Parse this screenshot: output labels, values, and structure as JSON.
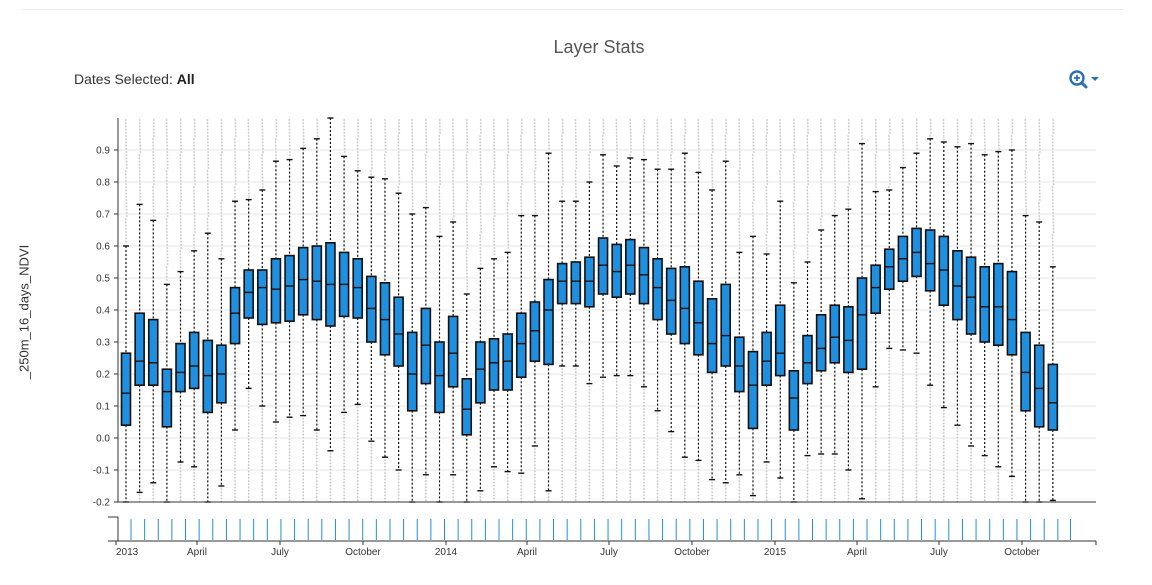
{
  "title": "Layer Stats",
  "dates_selected": {
    "label": "Dates Selected:",
    "value": "All"
  },
  "zoom": {
    "icon": "zoom-in-icon",
    "caret": "chevron-down-icon",
    "color": "#2a6fb5"
  },
  "colors": {
    "box_fill": "#1f8fdf",
    "box_stroke": "#111111",
    "outlier": "#c8c8c8",
    "grid": "#e6e6e6",
    "brush_tick": "#1f8fdf"
  },
  "chart_data": {
    "type": "box",
    "ylabel": "_250m_16_days_NDVI",
    "ylim": [
      -0.2,
      1.0
    ],
    "yticks": [
      -0.2,
      -0.1,
      0.0,
      0.1,
      0.2,
      0.3,
      0.4,
      0.5,
      0.6,
      0.7,
      0.8,
      0.9
    ],
    "x_ticks": [
      "2013",
      "April",
      "July",
      "October",
      "2014",
      "April",
      "July",
      "October",
      "2015",
      "April",
      "July",
      "October"
    ],
    "grid": true,
    "boxes": [
      {
        "min": -0.2,
        "q1": 0.04,
        "median": 0.14,
        "q3": 0.265,
        "max": 0.6
      },
      {
        "min": -0.17,
        "q1": 0.165,
        "median": 0.24,
        "q3": 0.39,
        "max": 0.73
      },
      {
        "min": -0.14,
        "q1": 0.165,
        "median": 0.235,
        "q3": 0.37,
        "max": 0.68
      },
      {
        "min": -0.2,
        "q1": 0.035,
        "median": 0.145,
        "q3": 0.215,
        "max": 0.48
      },
      {
        "min": -0.075,
        "q1": 0.145,
        "median": 0.205,
        "q3": 0.295,
        "max": 0.52
      },
      {
        "min": -0.09,
        "q1": 0.155,
        "median": 0.225,
        "q3": 0.33,
        "max": 0.585
      },
      {
        "min": -0.2,
        "q1": 0.08,
        "median": 0.195,
        "q3": 0.305,
        "max": 0.64
      },
      {
        "min": -0.15,
        "q1": 0.11,
        "median": 0.2,
        "q3": 0.29,
        "max": 0.56
      },
      {
        "min": 0.025,
        "q1": 0.295,
        "median": 0.39,
        "q3": 0.47,
        "max": 0.74
      },
      {
        "min": 0.155,
        "q1": 0.375,
        "median": 0.455,
        "q3": 0.525,
        "max": 0.745
      },
      {
        "min": 0.1,
        "q1": 0.355,
        "median": 0.47,
        "q3": 0.525,
        "max": 0.775
      },
      {
        "min": 0.05,
        "q1": 0.36,
        "median": 0.465,
        "q3": 0.56,
        "max": 0.865
      },
      {
        "min": 0.065,
        "q1": 0.365,
        "median": 0.475,
        "q3": 0.57,
        "max": 0.87
      },
      {
        "min": 0.07,
        "q1": 0.385,
        "median": 0.495,
        "q3": 0.595,
        "max": 0.905
      },
      {
        "min": 0.025,
        "q1": 0.37,
        "median": 0.49,
        "q3": 0.6,
        "max": 0.935
      },
      {
        "min": -0.04,
        "q1": 0.35,
        "median": 0.48,
        "q3": 0.61,
        "max": 1.0
      },
      {
        "min": 0.08,
        "q1": 0.38,
        "median": 0.48,
        "q3": 0.58,
        "max": 0.88
      },
      {
        "min": 0.105,
        "q1": 0.375,
        "median": 0.47,
        "q3": 0.56,
        "max": 0.835
      },
      {
        "min": -0.01,
        "q1": 0.3,
        "median": 0.405,
        "q3": 0.505,
        "max": 0.815
      },
      {
        "min": -0.06,
        "q1": 0.26,
        "median": 0.37,
        "q3": 0.485,
        "max": 0.81
      },
      {
        "min": -0.1,
        "q1": 0.225,
        "median": 0.325,
        "q3": 0.44,
        "max": 0.765
      },
      {
        "min": -0.2,
        "q1": 0.085,
        "median": 0.2,
        "q3": 0.33,
        "max": 0.7
      },
      {
        "min": -0.115,
        "q1": 0.17,
        "median": 0.29,
        "q3": 0.405,
        "max": 0.72
      },
      {
        "min": -0.2,
        "q1": 0.08,
        "median": 0.195,
        "q3": 0.3,
        "max": 0.63
      },
      {
        "min": -0.115,
        "q1": 0.16,
        "median": 0.265,
        "q3": 0.38,
        "max": 0.675
      },
      {
        "min": -0.2,
        "q1": 0.01,
        "median": 0.09,
        "q3": 0.185,
        "max": 0.45
      },
      {
        "min": -0.165,
        "q1": 0.11,
        "median": 0.215,
        "q3": 0.3,
        "max": 0.53
      },
      {
        "min": -0.09,
        "q1": 0.15,
        "median": 0.235,
        "q3": 0.31,
        "max": 0.56
      },
      {
        "min": -0.105,
        "q1": 0.15,
        "median": 0.24,
        "q3": 0.325,
        "max": 0.58
      },
      {
        "min": -0.11,
        "q1": 0.19,
        "median": 0.295,
        "q3": 0.39,
        "max": 0.695
      },
      {
        "min": -0.025,
        "q1": 0.24,
        "median": 0.335,
        "q3": 0.425,
        "max": 0.695
      },
      {
        "min": -0.165,
        "q1": 0.23,
        "median": 0.4,
        "q3": 0.495,
        "max": 0.89
      },
      {
        "min": 0.225,
        "q1": 0.42,
        "median": 0.49,
        "q3": 0.545,
        "max": 0.74
      },
      {
        "min": 0.225,
        "q1": 0.42,
        "median": 0.49,
        "q3": 0.55,
        "max": 0.74
      },
      {
        "min": 0.17,
        "q1": 0.41,
        "median": 0.49,
        "q3": 0.565,
        "max": 0.8
      },
      {
        "min": 0.19,
        "q1": 0.45,
        "median": 0.54,
        "q3": 0.625,
        "max": 0.885
      },
      {
        "min": 0.195,
        "q1": 0.44,
        "median": 0.52,
        "q3": 0.605,
        "max": 0.85
      },
      {
        "min": 0.195,
        "q1": 0.45,
        "median": 0.54,
        "q3": 0.62,
        "max": 0.875
      },
      {
        "min": 0.16,
        "q1": 0.42,
        "median": 0.51,
        "q3": 0.595,
        "max": 0.87
      },
      {
        "min": 0.085,
        "q1": 0.37,
        "median": 0.47,
        "q3": 0.56,
        "max": 0.84
      },
      {
        "min": 0.02,
        "q1": 0.325,
        "median": 0.43,
        "q3": 0.53,
        "max": 0.84
      },
      {
        "min": -0.06,
        "q1": 0.295,
        "median": 0.405,
        "q3": 0.535,
        "max": 0.89
      },
      {
        "min": -0.07,
        "q1": 0.26,
        "median": 0.36,
        "q3": 0.49,
        "max": 0.83
      },
      {
        "min": -0.13,
        "q1": 0.205,
        "median": 0.295,
        "q3": 0.435,
        "max": 0.775
      },
      {
        "min": -0.14,
        "q1": 0.225,
        "median": 0.32,
        "q3": 0.48,
        "max": 0.865
      },
      {
        "min": -0.115,
        "q1": 0.145,
        "median": 0.225,
        "q3": 0.315,
        "max": 0.58
      },
      {
        "min": -0.18,
        "q1": 0.03,
        "median": 0.165,
        "q3": 0.27,
        "max": 0.63
      },
      {
        "min": -0.075,
        "q1": 0.165,
        "median": 0.24,
        "q3": 0.33,
        "max": 0.575
      },
      {
        "min": -0.125,
        "q1": 0.195,
        "median": 0.265,
        "q3": 0.415,
        "max": 0.74
      },
      {
        "min": -0.2,
        "q1": 0.025,
        "median": 0.125,
        "q3": 0.21,
        "max": 0.485
      },
      {
        "min": -0.055,
        "q1": 0.17,
        "median": 0.235,
        "q3": 0.32,
        "max": 0.55
      },
      {
        "min": -0.05,
        "q1": 0.21,
        "median": 0.28,
        "q3": 0.385,
        "max": 0.65
      },
      {
        "min": -0.05,
        "q1": 0.235,
        "median": 0.315,
        "q3": 0.415,
        "max": 0.695
      },
      {
        "min": -0.1,
        "q1": 0.205,
        "median": 0.305,
        "q3": 0.41,
        "max": 0.715
      },
      {
        "min": -0.19,
        "q1": 0.215,
        "median": 0.385,
        "q3": 0.5,
        "max": 0.92
      },
      {
        "min": 0.16,
        "q1": 0.39,
        "median": 0.47,
        "q3": 0.54,
        "max": 0.77
      },
      {
        "min": 0.28,
        "q1": 0.465,
        "median": 0.535,
        "q3": 0.59,
        "max": 0.775
      },
      {
        "min": 0.275,
        "q1": 0.49,
        "median": 0.56,
        "q3": 0.63,
        "max": 0.845
      },
      {
        "min": 0.265,
        "q1": 0.505,
        "median": 0.58,
        "q3": 0.655,
        "max": 0.89
      },
      {
        "min": 0.165,
        "q1": 0.46,
        "median": 0.545,
        "q3": 0.65,
        "max": 0.935
      },
      {
        "min": 0.095,
        "q1": 0.415,
        "median": 0.525,
        "q3": 0.63,
        "max": 0.925
      },
      {
        "min": 0.04,
        "q1": 0.37,
        "median": 0.475,
        "q3": 0.585,
        "max": 0.91
      },
      {
        "min": -0.025,
        "q1": 0.325,
        "median": 0.44,
        "q3": 0.565,
        "max": 0.92
      },
      {
        "min": -0.055,
        "q1": 0.3,
        "median": 0.41,
        "q3": 0.535,
        "max": 0.885
      },
      {
        "min": -0.09,
        "q1": 0.29,
        "median": 0.41,
        "q3": 0.545,
        "max": 0.895
      },
      {
        "min": -0.12,
        "q1": 0.26,
        "median": 0.37,
        "q3": 0.52,
        "max": 0.9
      },
      {
        "min": -0.2,
        "q1": 0.085,
        "median": 0.205,
        "q3": 0.33,
        "max": 0.695
      },
      {
        "min": -0.2,
        "q1": 0.035,
        "median": 0.155,
        "q3": 0.29,
        "max": 0.675
      },
      {
        "min": -0.195,
        "q1": 0.025,
        "median": 0.11,
        "q3": 0.23,
        "max": 0.535
      }
    ]
  }
}
